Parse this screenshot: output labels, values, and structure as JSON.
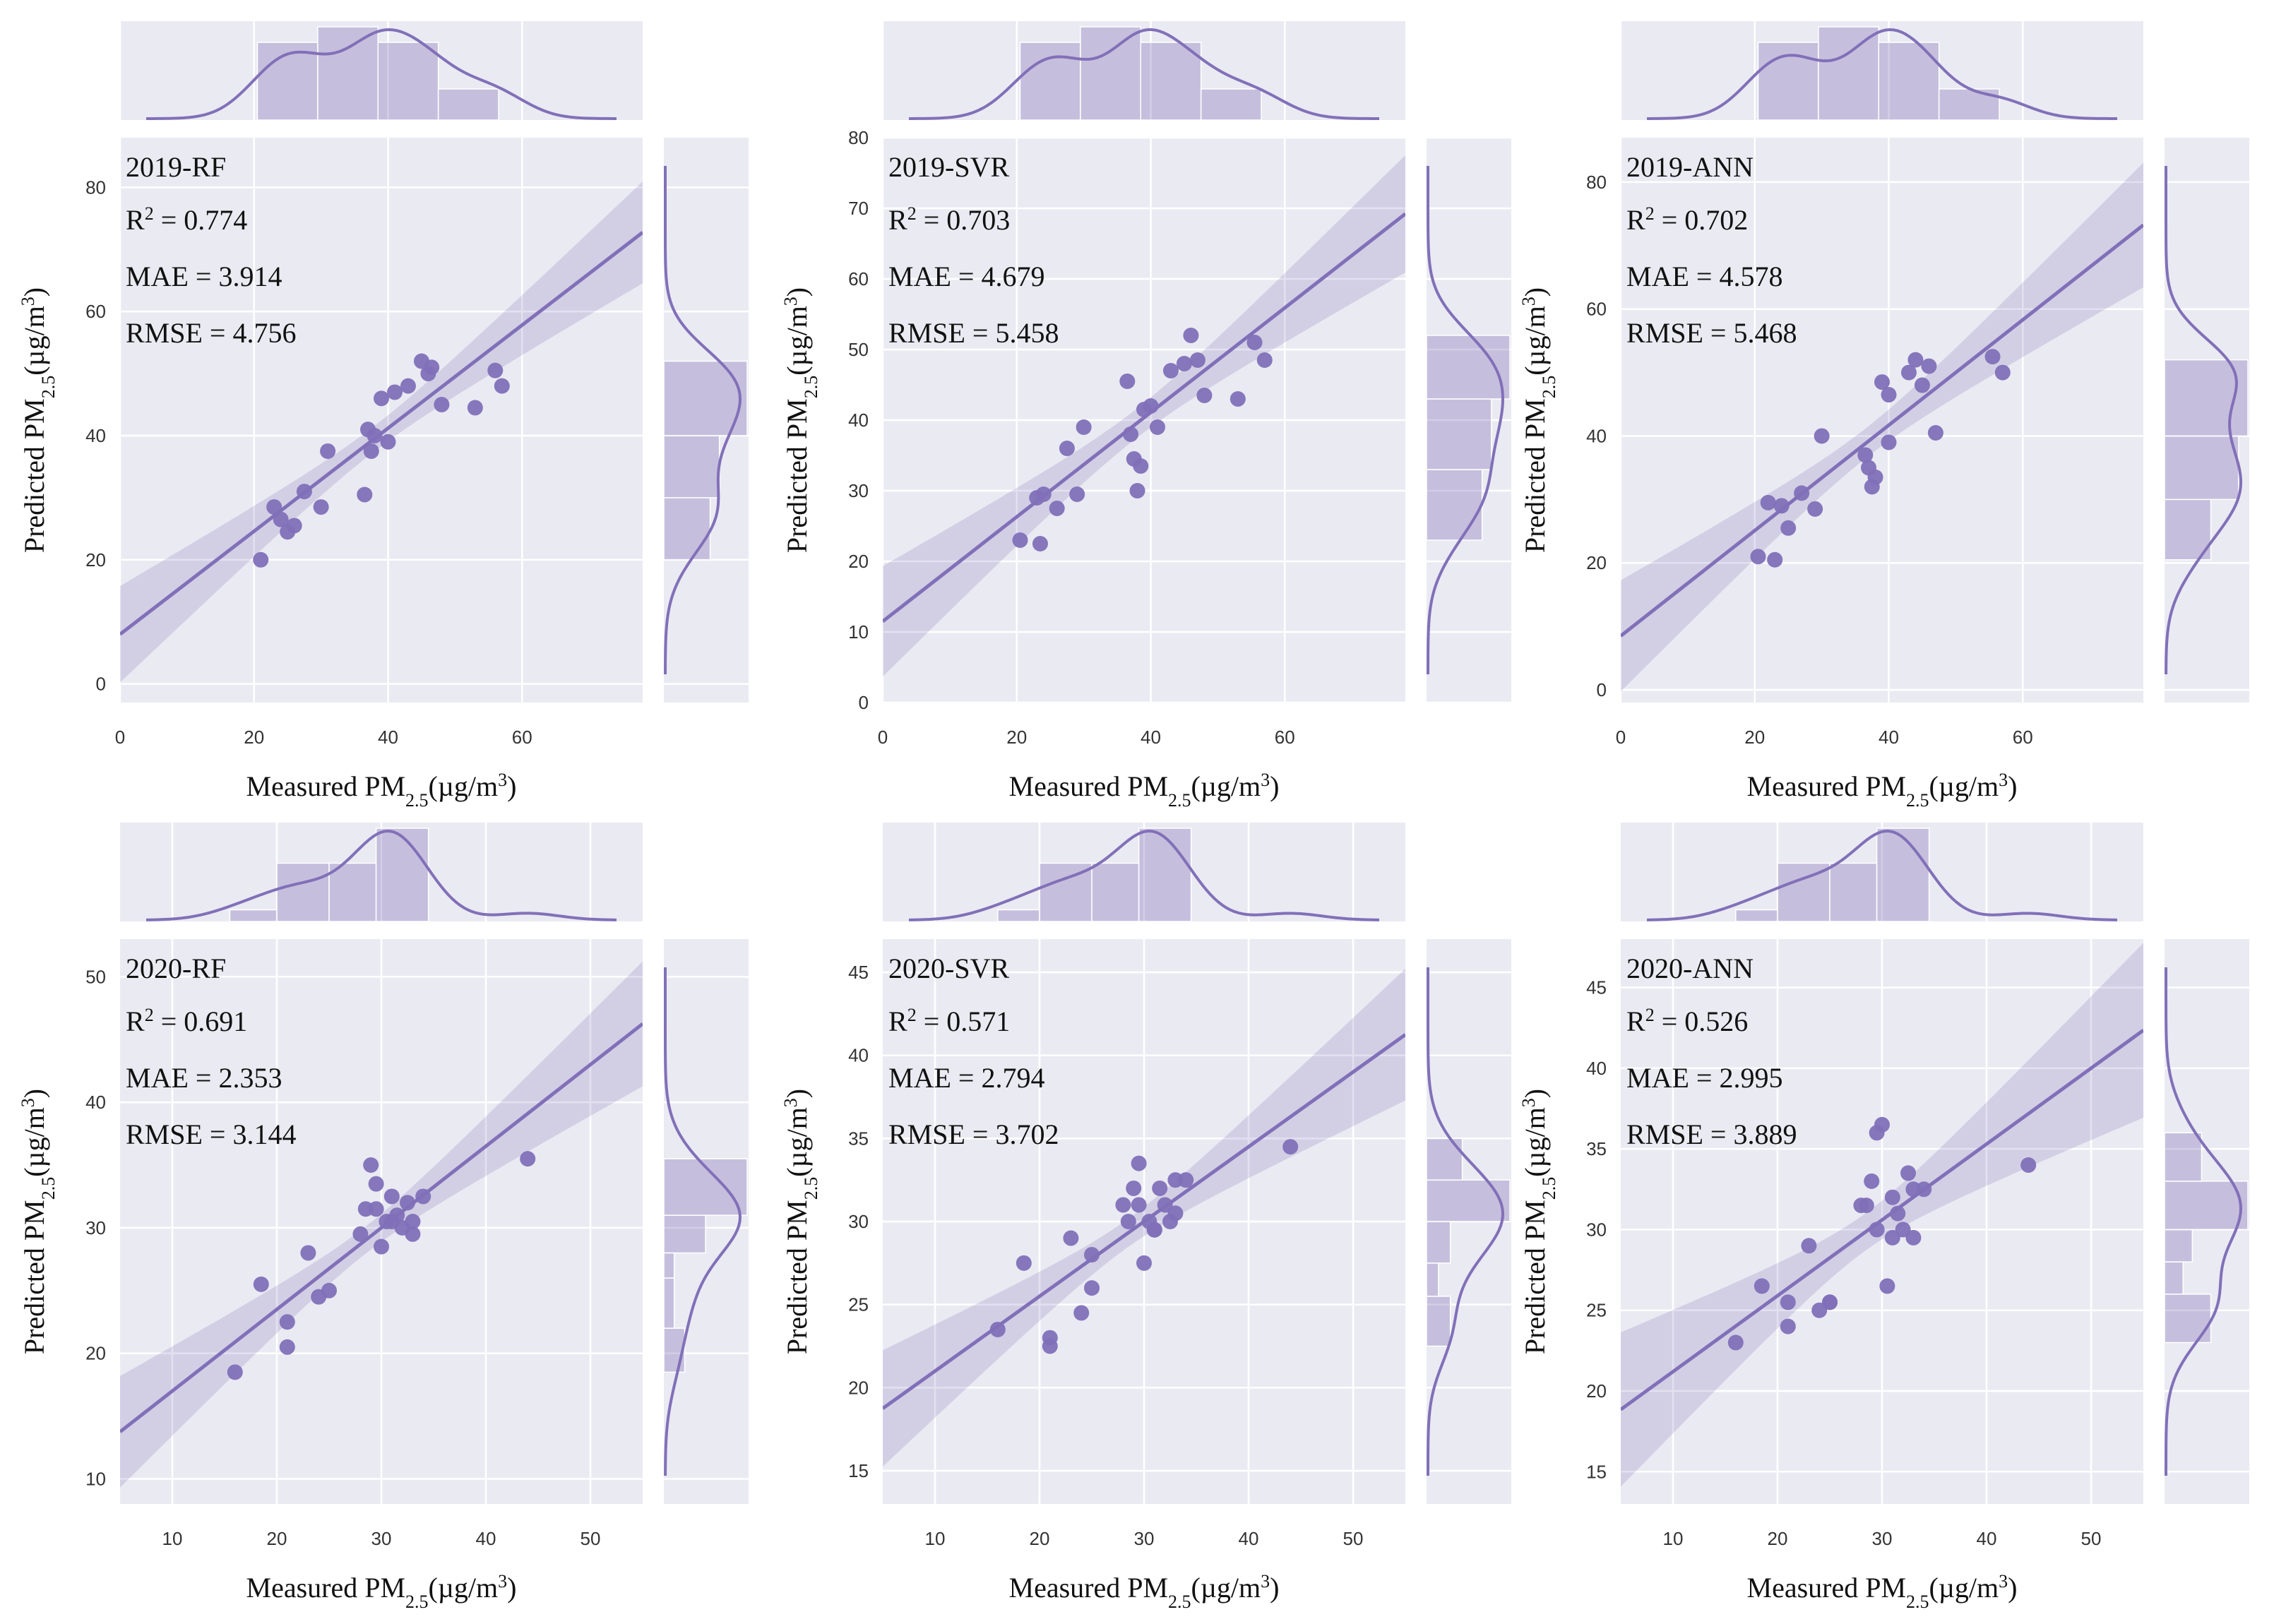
{
  "accent_color": "#8170b8",
  "panel_bg": "#eaeaf2",
  "chart_data": [
    {
      "type": "scatter",
      "title": "2019-RF",
      "r2_label": "R² = 0.774",
      "mae_label": "MAE =  3.914",
      "rmse_label": "RMSE = 4.756",
      "xlabel": "Measured PM2.5(µg/m³)",
      "ylabel": "Predicted PM2.5(µg/m³)",
      "xlim": [
        0,
        78
      ],
      "ylim": [
        -3,
        88
      ],
      "xticks": [
        0,
        20,
        40,
        60
      ],
      "yticks": [
        0,
        20,
        40,
        60,
        80
      ],
      "regression": {
        "slope": 0.83,
        "intercept": 8
      },
      "x": [
        21,
        23,
        24,
        25,
        26,
        27.5,
        30,
        31,
        36.5,
        37,
        37.5,
        38,
        39,
        40,
        41,
        43,
        45,
        46,
        46.5,
        48,
        53,
        56,
        57
      ],
      "y": [
        20,
        28.5,
        26.5,
        24.5,
        25.5,
        31,
        28.5,
        37.5,
        30.5,
        41,
        37.5,
        40,
        46,
        39,
        47,
        48,
        52,
        50,
        51,
        45,
        44.5,
        50.5,
        48
      ],
      "top_hist": {
        "edges": [
          20.5,
          29.5,
          38.5,
          47.5,
          56.5
        ],
        "counts": [
          5,
          6,
          5,
          2
        ]
      },
      "right_hist": {
        "edges": [
          20,
          30,
          40,
          52
        ],
        "counts": [
          5,
          6,
          9
        ]
      }
    },
    {
      "type": "scatter",
      "title": "2019-SVR",
      "r2_label": "R² = 0.703",
      "mae_label": "MAE =  4.679",
      "rmse_label": "RMSE = 5.458",
      "xlabel": "Measured PM2.5(µg/m³)",
      "ylabel": "Predicted PM2.5(µg/m³)",
      "xlim": [
        0,
        78
      ],
      "ylim": [
        0,
        80
      ],
      "xticks": [
        0,
        20,
        40,
        60
      ],
      "yticks": [
        0,
        10,
        20,
        30,
        40,
        50,
        60,
        70,
        80
      ],
      "regression": {
        "slope": 0.74,
        "intercept": 11.5
      },
      "x": [
        20.5,
        23,
        23.5,
        24,
        26,
        27.5,
        29,
        30,
        36.5,
        37,
        37.5,
        38,
        38.5,
        39,
        40,
        41,
        43,
        45,
        46,
        47,
        48,
        53,
        55.5,
        57
      ],
      "y": [
        23,
        29,
        22.5,
        29.5,
        27.5,
        36,
        29.5,
        39,
        45.5,
        38,
        34.5,
        30,
        33.5,
        41.5,
        42,
        39,
        47,
        48,
        52,
        48.5,
        43.5,
        43,
        51,
        48.5
      ],
      "top_hist": {
        "edges": [
          20.5,
          29.5,
          38.5,
          47.5,
          56.5
        ],
        "counts": [
          5,
          6,
          5,
          2
        ]
      },
      "right_hist": {
        "edges": [
          23,
          33,
          43,
          52
        ],
        "counts": [
          6,
          7,
          9
        ]
      }
    },
    {
      "type": "scatter",
      "title": "2019-ANN",
      "r2_label": "R² = 0.702",
      "mae_label": "MAE =  4.578",
      "rmse_label": "RMSE = 5.468",
      "xlabel": "Measured PM2.5(µg/m³)",
      "ylabel": "Predicted PM2.5(µg/m³)",
      "xlim": [
        0,
        78
      ],
      "ylim": [
        -2,
        87
      ],
      "xticks": [
        0,
        20,
        40,
        60
      ],
      "yticks": [
        0,
        20,
        40,
        60,
        80
      ],
      "regression": {
        "slope": 0.83,
        "intercept": 8.5
      },
      "x": [
        20.5,
        22,
        23,
        24,
        25,
        27,
        29,
        30,
        36.5,
        37,
        37.5,
        38,
        39,
        40,
        40,
        43,
        44,
        45,
        46,
        47,
        55.5,
        57
      ],
      "y": [
        21,
        29.5,
        20.5,
        29,
        25.5,
        31,
        28.5,
        40,
        37,
        35,
        32,
        33.5,
        48.5,
        39,
        46.5,
        50,
        52,
        48,
        51,
        40.5,
        52.5,
        50
      ],
      "top_hist": {
        "edges": [
          20.5,
          29.5,
          38.5,
          47.5,
          56.5
        ],
        "counts": [
          5,
          6,
          5,
          2
        ]
      },
      "right_hist": {
        "edges": [
          20.5,
          30,
          40,
          52
        ],
        "counts": [
          5,
          8,
          9
        ]
      }
    },
    {
      "type": "scatter",
      "title": "2020-RF",
      "r2_label": "R² = 0.691",
      "mae_label": "MAE =  2.353",
      "rmse_label": "RMSE = 3.144",
      "xlabel": "Measured PM2.5(µg/m³)",
      "ylabel": "Predicted PM2.5(µg/m³)",
      "xlim": [
        5,
        55
      ],
      "ylim": [
        8,
        53
      ],
      "xticks": [
        10,
        20,
        30,
        40,
        50
      ],
      "yticks": [
        10,
        20,
        30,
        40,
        50
      ],
      "regression": {
        "slope": 0.65,
        "intercept": 10.5
      },
      "x": [
        16,
        18.5,
        21,
        21,
        23,
        24,
        25,
        28,
        28.5,
        29,
        29.5,
        29.5,
        30,
        30.5,
        31,
        31,
        31.5,
        32,
        32.5,
        33,
        33,
        34,
        44
      ],
      "y": [
        18.5,
        25.5,
        22.5,
        20.5,
        28,
        24.5,
        25,
        29.5,
        31.5,
        35,
        33.5,
        31.5,
        28.5,
        30.5,
        32.5,
        30.5,
        31,
        30,
        32,
        29.5,
        30.5,
        32.5,
        35.5
      ],
      "top_hist": {
        "edges": [
          15.5,
          20,
          25,
          29.5,
          34.5
        ],
        "counts": [
          1,
          5,
          5,
          8
        ]
      },
      "right_hist": {
        "edges": [
          18.5,
          22,
          26,
          28,
          31,
          35.5
        ],
        "counts": [
          2,
          1,
          1,
          4,
          8
        ]
      }
    },
    {
      "type": "scatter",
      "title": "2020-SVR",
      "r2_label": "R² = 0.571",
      "mae_label": "MAE =  2.794",
      "rmse_label": "RMSE = 3.702",
      "xlabel": "Measured PM2.5(µg/m³)",
      "ylabel": "Predicted PM2.5(µg/m³)",
      "xlim": [
        5,
        55
      ],
      "ylim": [
        13,
        47
      ],
      "xticks": [
        10,
        20,
        30,
        40,
        50
      ],
      "yticks": [
        15,
        20,
        25,
        30,
        35,
        40,
        45
      ],
      "regression": {
        "slope": 0.45,
        "intercept": 16.5
      },
      "x": [
        16,
        18.5,
        21,
        21,
        23,
        24,
        25,
        25,
        28,
        28.5,
        29,
        29.5,
        29.5,
        30,
        30.5,
        31,
        31,
        31.5,
        32,
        32.5,
        33,
        33,
        34,
        44
      ],
      "y": [
        23.5,
        27.5,
        23,
        22.5,
        29,
        24.5,
        26,
        28,
        31,
        30,
        32,
        31,
        33.5,
        27.5,
        30,
        29.5,
        29.5,
        32,
        31,
        30,
        30.5,
        32.5,
        32.5,
        34.5
      ],
      "top_hist": {
        "edges": [
          16,
          20,
          25,
          29.5,
          34.5
        ],
        "counts": [
          1,
          5,
          5,
          8
        ]
      },
      "right_hist": {
        "edges": [
          22.5,
          25.5,
          27.5,
          30,
          32.5,
          35
        ],
        "counts": [
          2,
          1,
          2,
          7,
          3
        ]
      }
    },
    {
      "type": "scatter",
      "title": "2020-ANN",
      "r2_label": "R² = 0.526",
      "mae_label": "MAE =  2.995",
      "rmse_label": "RMSE = 3.889",
      "xlabel": "Measured PM2.5(µg/m³)",
      "ylabel": "Predicted PM2.5(µg/m³)",
      "xlim": [
        5,
        55
      ],
      "ylim": [
        13,
        48
      ],
      "xticks": [
        10,
        20,
        30,
        40,
        50
      ],
      "yticks": [
        15,
        20,
        25,
        30,
        35,
        40,
        45
      ],
      "regression": {
        "slope": 0.47,
        "intercept": 16.5
      },
      "x": [
        16,
        18.5,
        21,
        21,
        23,
        24,
        25,
        25,
        28,
        28.5,
        29,
        29.5,
        29.5,
        30,
        30.5,
        31,
        31,
        31.5,
        32,
        32.5,
        33,
        33,
        34,
        44
      ],
      "y": [
        23,
        26.5,
        25.5,
        24,
        29,
        25,
        25.5,
        25.5,
        31.5,
        31.5,
        33,
        36,
        30,
        36.5,
        26.5,
        32,
        29.5,
        31,
        30,
        33.5,
        29.5,
        32.5,
        32.5,
        34
      ],
      "top_hist": {
        "edges": [
          16,
          20,
          25,
          29.5,
          34.5
        ],
        "counts": [
          1,
          5,
          5,
          8
        ]
      },
      "right_hist": {
        "edges": [
          23,
          26,
          28,
          30,
          33,
          36
        ],
        "counts": [
          5,
          2,
          3,
          9,
          4
        ]
      }
    }
  ]
}
